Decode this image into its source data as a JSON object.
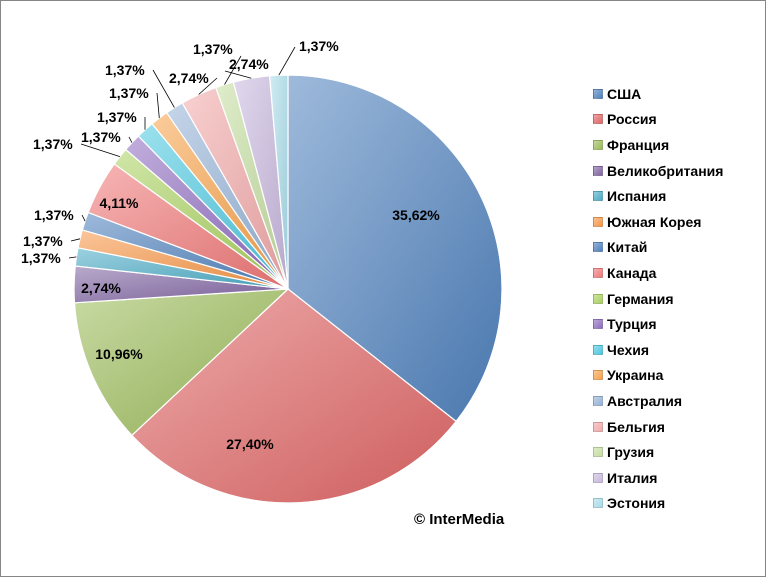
{
  "chart_data": {
    "type": "pie",
    "categories": [
      "США",
      "Россия",
      "Франция",
      "Великобритания",
      "Испания",
      "Южная Корея",
      "Китай",
      "Канада",
      "Германия",
      "Турция",
      "Чехия",
      "Украина",
      "Австралия",
      "Бельгия",
      "Грузия",
      "Италия",
      "Эстония"
    ],
    "values": [
      35.62,
      27.4,
      10.96,
      2.74,
      1.37,
      1.37,
      1.37,
      4.11,
      1.37,
      1.37,
      1.37,
      1.37,
      1.37,
      2.74,
      1.37,
      2.74,
      1.37
    ],
    "labels": [
      "35,62%",
      "27,40%",
      "10,96%",
      "2,74%",
      "1,37%",
      "1,37%",
      "1,37%",
      "4,11%",
      "1,37%",
      "1,37%",
      "1,37%",
      "1,37%",
      "1,37%",
      "2,74%",
      "1,37%",
      "2,74%",
      "1,37%"
    ],
    "colors": [
      "#4f81bd",
      "#e06666",
      "#9bbb59",
      "#8064a2",
      "#4bacc6",
      "#f79646",
      "#4f81bd",
      "#f07878",
      "#a9d15f",
      "#8e6cbf",
      "#4bc8e0",
      "#f7a24a",
      "#95b3d7",
      "#f2a9a9",
      "#c4dea0",
      "#c8b8de",
      "#a8dcea"
    ],
    "legend_position": "right"
  },
  "copyright": "© InterMedia"
}
